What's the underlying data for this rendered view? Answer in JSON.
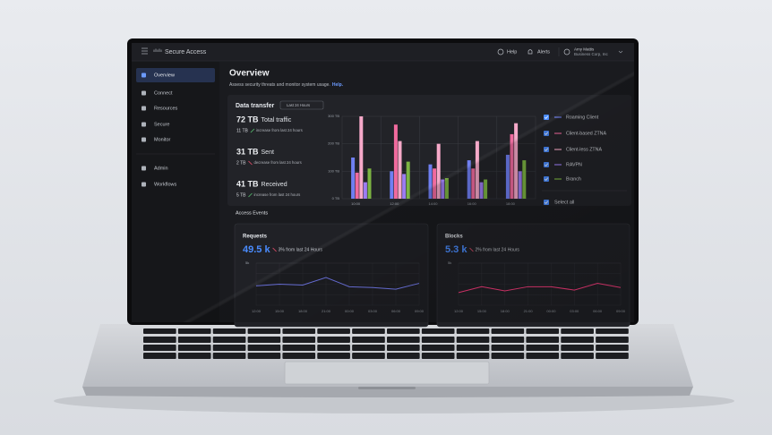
{
  "header": {
    "brand": "Secure Access",
    "help": "Help",
    "alerts": "Alerts",
    "user_name": "Amy Mattis",
    "user_org": "Business Corp, Inc"
  },
  "sidebar": {
    "items": [
      "Overview",
      "Connect",
      "Resources",
      "Secure",
      "Monitor",
      "Admin",
      "Workflows"
    ]
  },
  "page": {
    "title": "Overview",
    "subtitle": "Assess security threats and monitor system usage.",
    "help_link": "Help."
  },
  "data_transfer": {
    "title": "Data transfer",
    "filter": "Last 24 Hours",
    "stats": [
      {
        "value": "72 TB",
        "label": "Total traffic",
        "sub_value": "11 TB",
        "sub_label": "increase from last 24 hours",
        "trend": "up"
      },
      {
        "value": "31 TB",
        "label": "Sent",
        "sub_value": "2 TB",
        "sub_label": "decrease from last 24 hours",
        "trend": "down"
      },
      {
        "value": "41 TB",
        "label": "Received",
        "sub_value": "5 TB",
        "sub_label": "increase from last 24 hours",
        "trend": "up"
      }
    ],
    "chart": {
      "type": "bar",
      "categories": [
        "10:00",
        "12:00",
        "14:00",
        "16:00",
        "18:00"
      ],
      "ylim": [
        0,
        300
      ],
      "yticks": [
        {
          "value": 0,
          "label": "0 TB"
        },
        {
          "value": 100,
          "label": "100 TB"
        },
        {
          "value": 200,
          "label": "200 TB"
        },
        {
          "value": 300,
          "label": "300 TB"
        }
      ],
      "grid": true,
      "series": [
        {
          "name": "Roaming Client",
          "color": "#6f7ff2",
          "values": [
            150,
            100,
            125,
            140,
            160
          ]
        },
        {
          "name": "Client-based ZTNA",
          "color": "#f06a9e",
          "values": [
            95,
            270,
            110,
            110,
            235
          ]
        },
        {
          "name": "Client-less ZTNA",
          "color": "#f6a9c9",
          "values": [
            300,
            210,
            200,
            210,
            275
          ]
        },
        {
          "name": "RAVPN",
          "color": "#9c7cf2",
          "values": [
            60,
            90,
            70,
            60,
            100
          ]
        },
        {
          "name": "Branch",
          "color": "#7cb342",
          "values": [
            110,
            135,
            75,
            70,
            140
          ]
        }
      ],
      "select_all": "Select all"
    }
  },
  "access_events": {
    "title": "Access Events",
    "cards": [
      {
        "title": "Requests",
        "value": "49.5 k",
        "change": "3% from last 24 Hours",
        "chart": {
          "type": "line",
          "categories": [
            "12:00",
            "15:00",
            "18:00",
            "21:00",
            "00:00",
            "03:00",
            "06:00",
            "09:00"
          ],
          "ylim": [
            0,
            5000
          ],
          "yticks": [
            {
              "value": 5000,
              "label": "5k"
            }
          ],
          "series": [
            {
              "color": "#7b83ff",
              "values": [
                2300,
                2500,
                2400,
                3300,
                2200,
                2100,
                1900,
                2600
              ]
            }
          ]
        }
      },
      {
        "title": "Blocks",
        "value": "5.3 k",
        "change": "2% from last 24 Hours",
        "chart": {
          "type": "line",
          "categories": [
            "12:00",
            "15:00",
            "18:00",
            "21:00",
            "00:00",
            "03:00",
            "06:00",
            "09:00"
          ],
          "ylim": [
            0,
            5000
          ],
          "yticks": [
            {
              "value": 5000,
              "label": "5k"
            }
          ],
          "series": [
            {
              "color": "#ff3d7f",
              "values": [
                1500,
                2200,
                1700,
                2200,
                2200,
                1800,
                2600,
                2100
              ]
            }
          ]
        }
      }
    ]
  }
}
